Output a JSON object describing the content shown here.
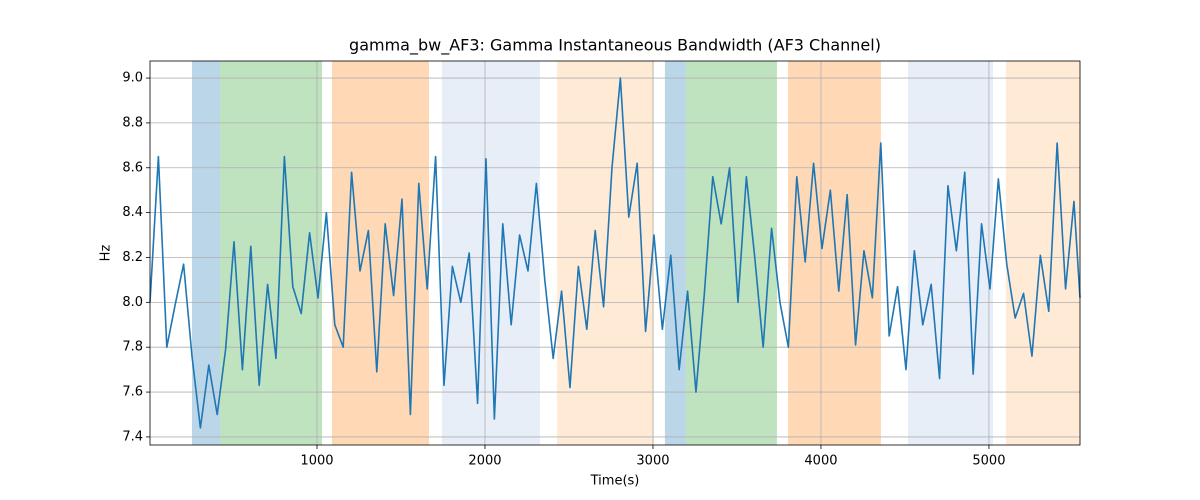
{
  "chart_data": {
    "type": "line",
    "title": "gamma_bw_AF3: Gamma Instantaneous Bandwidth (AF3 Channel)",
    "x_label": "Time(s)",
    "y_label": "Hz",
    "xlim": [
      6,
      5542
    ],
    "ylim": [
      7.364,
      9.076
    ],
    "xticks": [
      1000,
      2000,
      3000,
      4000,
      5000
    ],
    "yticks": [
      7.4,
      7.6,
      7.8,
      {
        "value": 8,
        "label": "8.0"
      },
      8.2,
      8.4,
      8.6,
      8.8,
      {
        "value": 9,
        "label": "9.0"
      }
    ],
    "grid": true,
    "spans": [
      {
        "start": 256,
        "end": 423,
        "color": "#1f77b4"
      },
      {
        "start": 423,
        "end": 1030,
        "color": "#2ca02c"
      },
      {
        "start": 1089,
        "end": 1667,
        "color": "#ff7f0e"
      },
      {
        "start": 1744,
        "end": 2327,
        "color": "#aec7e8"
      },
      {
        "start": 2429,
        "end": 3006,
        "color": "#ffbb78"
      },
      {
        "start": 3071,
        "end": 3196,
        "color": "#1f77b4"
      },
      {
        "start": 3196,
        "end": 3738,
        "color": "#2ca02c"
      },
      {
        "start": 3804,
        "end": 4357,
        "color": "#ff7f0e"
      },
      {
        "start": 4518,
        "end": 5024,
        "color": "#aec7e8"
      },
      {
        "start": 5101,
        "end": 5542,
        "color": "#ffbb78"
      }
    ],
    "series": [
      {
        "color": "#1f77b4",
        "x": [
          6,
          56,
          106,
          156,
          206,
          256,
          306,
          356,
          406,
          456,
          506,
          556,
          606,
          656,
          706,
          756,
          806,
          856,
          906,
          956,
          1006,
          1056,
          1106,
          1156,
          1206,
          1256,
          1306,
          1356,
          1406,
          1456,
          1506,
          1556,
          1606,
          1656,
          1706,
          1756,
          1806,
          1856,
          1906,
          1956,
          2006,
          2056,
          2106,
          2156,
          2206,
          2256,
          2306,
          2356,
          2406,
          2456,
          2506,
          2556,
          2606,
          2656,
          2706,
          2756,
          2806,
          2856,
          2906,
          2956,
          3006,
          3056,
          3106,
          3156,
          3206,
          3256,
          3306,
          3356,
          3406,
          3456,
          3506,
          3556,
          3606,
          3656,
          3706,
          3756,
          3806,
          3856,
          3906,
          3956,
          4006,
          4056,
          4106,
          4156,
          4206,
          4256,
          4306,
          4356,
          4406,
          4456,
          4506,
          4556,
          4606,
          4656,
          4706,
          4756,
          4806,
          4856,
          4906,
          4956,
          5006,
          5056,
          5106,
          5156,
          5206,
          5256,
          5306,
          5356,
          5406,
          5456,
          5506,
          5542
        ],
        "values": [
          8.0,
          8.65,
          7.8,
          7.99,
          8.17,
          7.76,
          7.44,
          7.72,
          7.5,
          7.79,
          8.27,
          7.7,
          8.25,
          7.63,
          8.08,
          7.75,
          8.65,
          8.07,
          7.95,
          8.31,
          8.02,
          8.4,
          7.9,
          7.8,
          8.58,
          8.14,
          8.32,
          7.69,
          8.35,
          8.03,
          8.46,
          7.5,
          8.53,
          8.06,
          8.65,
          7.63,
          8.16,
          8.0,
          8.22,
          7.55,
          8.64,
          7.48,
          8.35,
          7.9,
          8.3,
          8.14,
          8.53,
          8.1,
          7.75,
          8.05,
          7.62,
          8.16,
          7.88,
          8.32,
          7.98,
          8.6,
          9.0,
          8.38,
          8.62,
          7.87,
          8.3,
          7.88,
          8.21,
          7.7,
          8.05,
          7.6,
          8.04,
          8.56,
          8.35,
          8.6,
          8.0,
          8.56,
          8.2,
          7.8,
          8.33,
          8.0,
          7.8,
          8.56,
          8.18,
          8.62,
          8.24,
          8.5,
          8.05,
          8.48,
          7.81,
          8.23,
          8.02,
          8.71,
          7.85,
          8.07,
          7.7,
          8.23,
          7.9,
          8.08,
          7.66,
          8.52,
          8.23,
          8.58,
          7.68,
          8.35,
          8.06,
          8.55,
          8.17,
          7.93,
          8.04,
          7.76,
          8.21,
          7.96,
          8.71,
          8.06,
          8.45,
          8.02
        ]
      }
    ]
  }
}
